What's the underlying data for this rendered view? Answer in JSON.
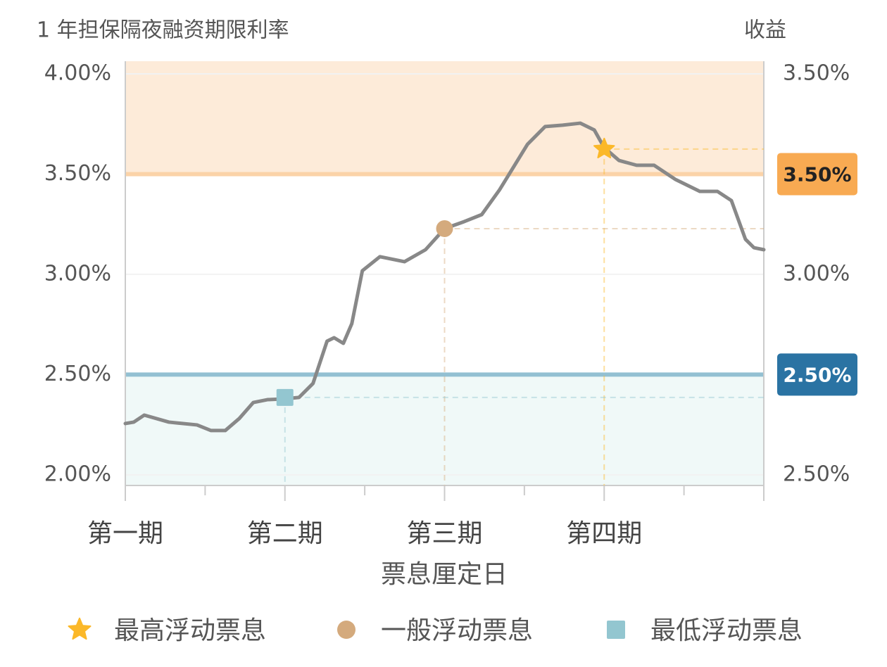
{
  "chart_data": {
    "type": "line",
    "y_label": "1 年担保隔夜融资期限利率",
    "y2_label": "收益",
    "x_label": "票息厘定日",
    "x": [
      0,
      0.053,
      0.119,
      0.273,
      0.449,
      0.537,
      0.626,
      0.714,
      0.802,
      0.89,
      1,
      1.088,
      1.176,
      1.264,
      1.308,
      1.366,
      1.419,
      1.485,
      1.595,
      1.749,
      1.881,
      2,
      2.123,
      2.233,
      2.344,
      2.52,
      2.63,
      2.74,
      2.85,
      2.938,
      3,
      3.093,
      3.203,
      3.313,
      3.445,
      3.599,
      3.709,
      3.797,
      3.885,
      3.938,
      4
    ],
    "series": [
      {
        "color": "#888888",
        "values": [
          2.256,
          2.263,
          2.298,
          2.263,
          2.249,
          2.221,
          2.221,
          2.281,
          2.361,
          2.375,
          2.379,
          2.386,
          2.456,
          2.667,
          2.684,
          2.656,
          2.754,
          3.018,
          3.088,
          3.063,
          3.123,
          3.228,
          3.263,
          3.298,
          3.421,
          3.649,
          3.737,
          3.744,
          3.754,
          3.72,
          3.632,
          3.568,
          3.544,
          3.544,
          3.474,
          3.414,
          3.414,
          3.368,
          3.175,
          3.133,
          3.123
        ]
      }
    ],
    "markers": [
      {
        "name": "最高浮动票息",
        "shape": "star",
        "color": "#fbb829",
        "x": 3,
        "y": 3.625
      },
      {
        "name": "一般浮动票息",
        "shape": "circle",
        "color": "#d4aa7d",
        "x": 2,
        "y": 3.228
      },
      {
        "name": "最低浮动票息",
        "shape": "square",
        "color": "#93c6d0",
        "x": 1,
        "y": 2.386
      }
    ],
    "thresholds": [
      {
        "value": 3.5,
        "label": "3.50%",
        "band": "above",
        "color": "#fbd3a8",
        "band_color": "#fdebd9",
        "badge_color": "#f8aa52",
        "text_color": "#222222"
      },
      {
        "value": 2.5,
        "label": "2.50%",
        "band": "below",
        "color": "#93c0d2",
        "band_color": "#f0f9f8",
        "badge_color": "#2a73a3",
        "text_color": "#ffffff"
      }
    ],
    "xlim": [
      0,
      4
    ],
    "xticks": [
      {
        "value": 0,
        "label": "第一期"
      },
      {
        "value": 1,
        "label": "第二期"
      },
      {
        "value": 2,
        "label": "第三期"
      },
      {
        "value": 3,
        "label": "第四期"
      }
    ],
    "minor_xticks": [
      0.5,
      1.5,
      2.5,
      3.5,
      4
    ],
    "ylim": [
      1.947,
      4.063
    ],
    "yticks": [
      {
        "value": 2,
        "label": "2.00%"
      },
      {
        "value": 2.5,
        "label": "2.50%"
      },
      {
        "value": 3,
        "label": "3.00%"
      },
      {
        "value": 3.5,
        "label": "3.50%"
      },
      {
        "value": 4,
        "label": "4.00%"
      }
    ],
    "y2lim": [
      2.474,
      3.532
    ],
    "y2ticks": [
      {
        "value": 2.5,
        "label": "2.50%"
      },
      {
        "value": 3,
        "label": "3.00%"
      },
      {
        "value": 3.5,
        "label": "3.50%"
      }
    ],
    "grid": true
  }
}
